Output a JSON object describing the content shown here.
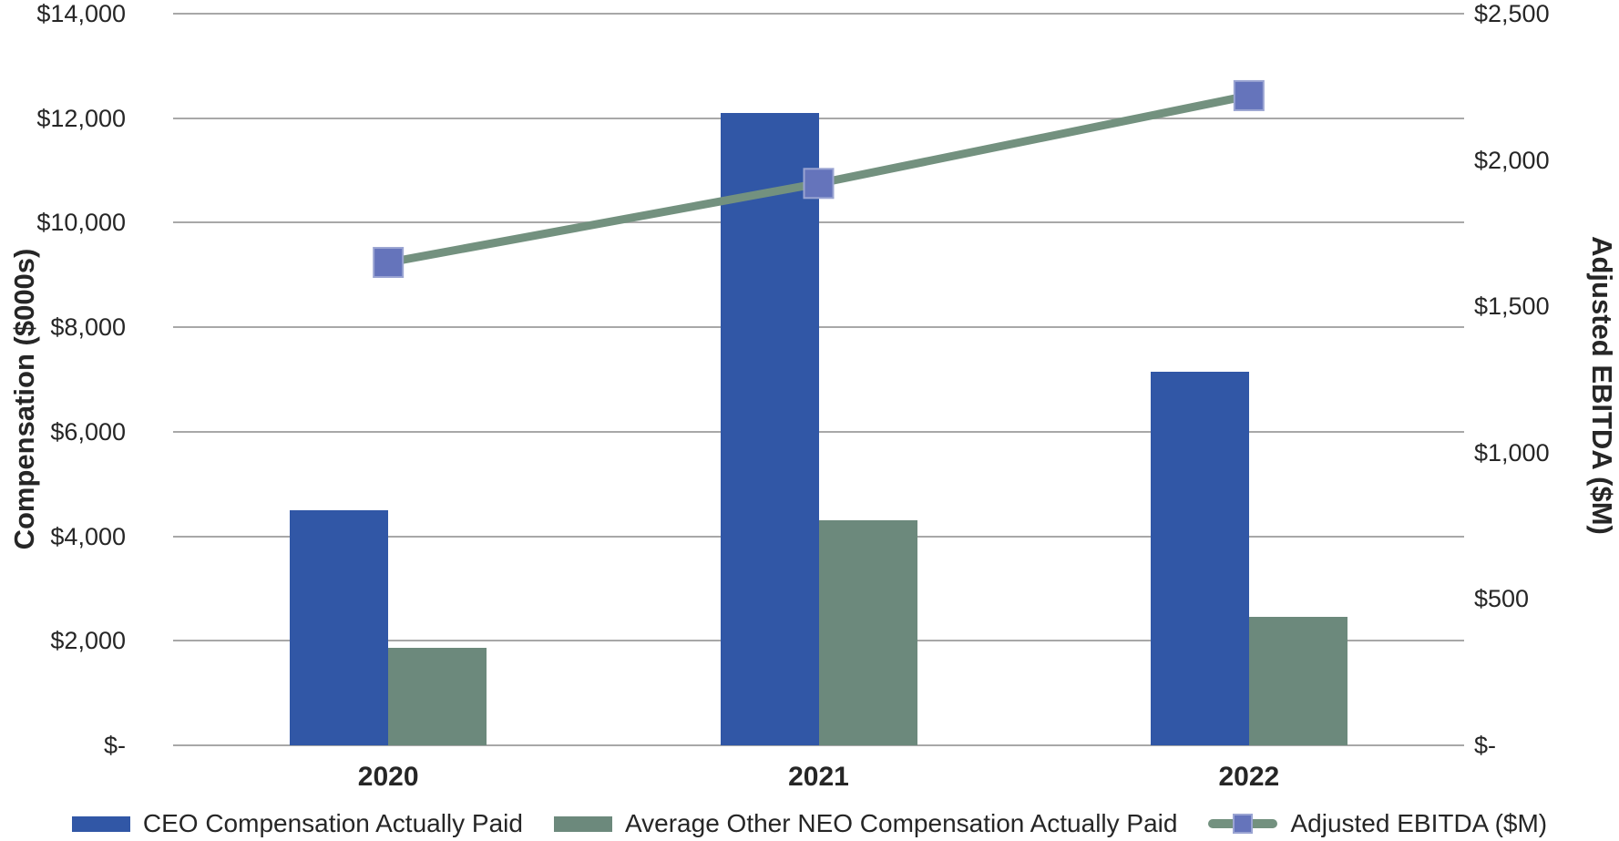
{
  "chart_data": {
    "type": "bar",
    "subtype": "clustered-bar-with-line-combo",
    "categories": [
      "2020",
      "2021",
      "2022"
    ],
    "series": [
      {
        "name": "CEO Compensation Actually Paid",
        "type": "bar",
        "axis": "left",
        "color": "#3157A6",
        "values": [
          4500,
          12100,
          7150
        ]
      },
      {
        "name": "Average Other NEO Compensation Actually Paid",
        "type": "bar",
        "axis": "left",
        "color": "#6C897C",
        "values": [
          1870,
          4300,
          2450
        ]
      },
      {
        "name": "Adjusted EBITDA ($M)",
        "type": "line",
        "axis": "right",
        "color": "#73917F",
        "marker": "square",
        "marker_color": "#6574BB",
        "values": [
          1650,
          1920,
          2220
        ]
      }
    ],
    "left_axis": {
      "title": "Compensation ($000s)",
      "min": 0,
      "max": 14000,
      "tick_step": 2000,
      "tick_values": [
        14000,
        12000,
        10000,
        8000,
        6000,
        4000,
        2000,
        0
      ],
      "tick_labels": [
        "$14,000",
        "$12,000",
        "$10,000",
        "$8,000",
        "$6,000",
        "$4,000",
        "$2,000",
        "$-"
      ]
    },
    "right_axis": {
      "title": "Adjusted EBITDA ($M)",
      "min": 0,
      "max": 2500,
      "tick_step": 500,
      "tick_values": [
        2500,
        2000,
        1500,
        1000,
        500,
        0
      ],
      "tick_labels": [
        "$2,500",
        "$2,000",
        "$1,500",
        "$1,000",
        "$500",
        "$-"
      ]
    },
    "grid": true,
    "legend_position": "bottom",
    "colors": {
      "gridline": "#A8A8A8",
      "text": "#262626",
      "background": "#FFFFFF",
      "marker_edge": "#9AA4D2"
    }
  }
}
